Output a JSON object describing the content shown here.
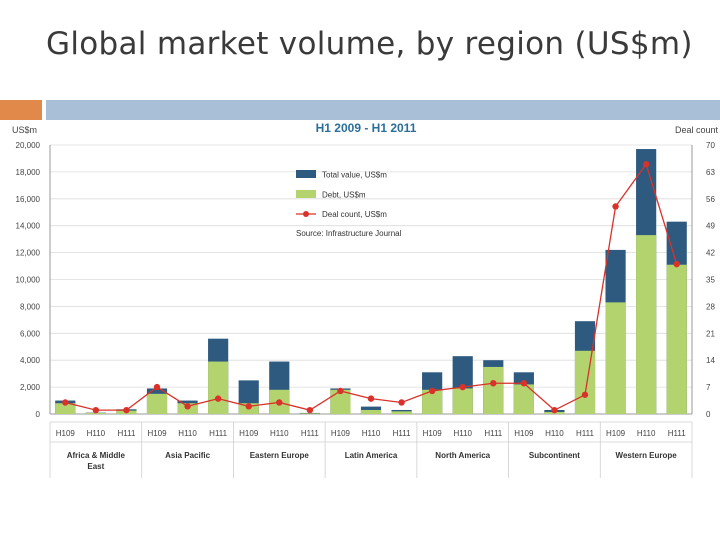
{
  "slide": {
    "title": "Global market volume, by region (US$m)"
  },
  "colors": {
    "accent_orange": "#e0894a",
    "accent_blue": "#a9bfd8",
    "total": "#2e5a7f",
    "debt": "#b3d36f",
    "dealcount": "#d9322a",
    "chart_title": "#2a6f9c"
  },
  "chart_data": {
    "type": "bar",
    "title": "H1 2009 - H1 2011",
    "ylabel": "US$m",
    "y2label": "Deal count",
    "ylim": [
      0,
      20000
    ],
    "y2lim": [
      0,
      70
    ],
    "yticks": [
      "20,000",
      "18,000",
      "16,000",
      "14,000",
      "12,000",
      "10,000",
      "8,000",
      "6,000",
      "4,000",
      "2,000",
      "0"
    ],
    "y2ticks": [
      "70",
      "63",
      "56",
      "49",
      "42",
      "35",
      "28",
      "21",
      "14",
      "7",
      "0"
    ],
    "legend": {
      "total": "Total value, US$m",
      "debt": "Debt, US$m",
      "dealcount": "Deal count, US$m",
      "source": "Source: Infrastructure Journal",
      "placement": "top-left"
    },
    "categories": [
      "H109",
      "H110",
      "H111",
      "H109",
      "H110",
      "H111",
      "H109",
      "H110",
      "H111",
      "H109",
      "H110",
      "H111",
      "H109",
      "H110",
      "H111",
      "H109",
      "H110",
      "H111",
      "H109",
      "H110",
      "H111"
    ],
    "groups": [
      "Africa & Middle East",
      "Asia Pacific",
      "Eastern Europe",
      "Latin America",
      "North America",
      "Subcontinent",
      "Western Europe"
    ],
    "series": [
      {
        "name": "Total value, US$m",
        "values": [
          1000,
          100,
          350,
          1900,
          1000,
          5600,
          2500,
          3900,
          80,
          1900,
          550,
          300,
          3100,
          4300,
          4000,
          3100,
          300,
          6900,
          12200,
          19700,
          14300
        ]
      },
      {
        "name": "Debt, US$m",
        "values": [
          800,
          80,
          250,
          1500,
          800,
          3900,
          800,
          1800,
          50,
          1800,
          300,
          200,
          1800,
          1900,
          3500,
          2200,
          150,
          4700,
          8300,
          13300,
          11100
        ]
      },
      {
        "name": "Deal count, US$m",
        "values": [
          3,
          1,
          1,
          7,
          2,
          4,
          2,
          3,
          1,
          6,
          4,
          3,
          6,
          7,
          8,
          8,
          1,
          5,
          54,
          65,
          39
        ]
      }
    ]
  }
}
